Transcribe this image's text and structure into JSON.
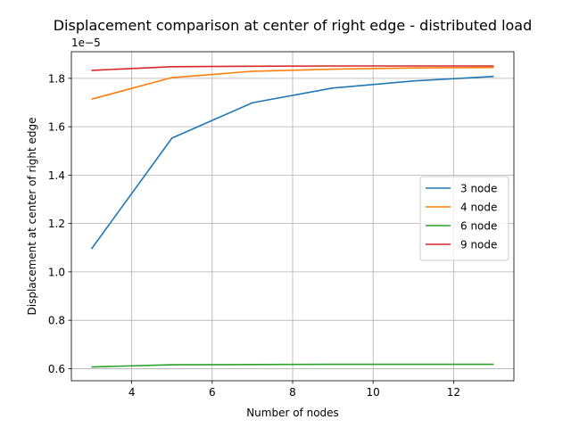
{
  "chart_data": {
    "type": "line",
    "title": "Displacement comparison at center of right edge - distributed load",
    "xlabel": "Number of nodes",
    "ylabel": "Displacement at center of right edge",
    "y_offset_label": "1e−5",
    "xlim": [
      2.5,
      13.5
    ],
    "ylim": [
      0.55,
      1.91
    ],
    "xticks": [
      4,
      6,
      8,
      10,
      12
    ],
    "xtick_labels": [
      "4",
      "6",
      "8",
      "10",
      "12"
    ],
    "yticks": [
      0.6,
      0.8,
      1.0,
      1.2,
      1.4,
      1.6,
      1.8
    ],
    "ytick_labels": [
      "0.6",
      "0.8",
      "1.0",
      "1.2",
      "1.4",
      "1.6",
      "1.8"
    ],
    "grid": true,
    "legend_position": "center-right",
    "x": [
      3,
      5,
      7,
      9,
      11,
      13
    ],
    "series": [
      {
        "name": "3 node",
        "color": "#1f77b4",
        "values": [
          1.095,
          1.553,
          1.699,
          1.76,
          1.789,
          1.808
        ]
      },
      {
        "name": "4 node",
        "color": "#ff7f0e",
        "values": [
          1.714,
          1.803,
          1.829,
          1.838,
          1.843,
          1.845
        ]
      },
      {
        "name": "6 node",
        "color": "#2ca02c",
        "values": [
          0.607,
          0.616,
          0.617,
          0.618,
          0.618,
          0.618
        ]
      },
      {
        "name": "9 node",
        "color": "#d62728",
        "values": [
          1.833,
          1.848,
          1.85,
          1.851,
          1.851,
          1.851
        ]
      }
    ]
  }
}
